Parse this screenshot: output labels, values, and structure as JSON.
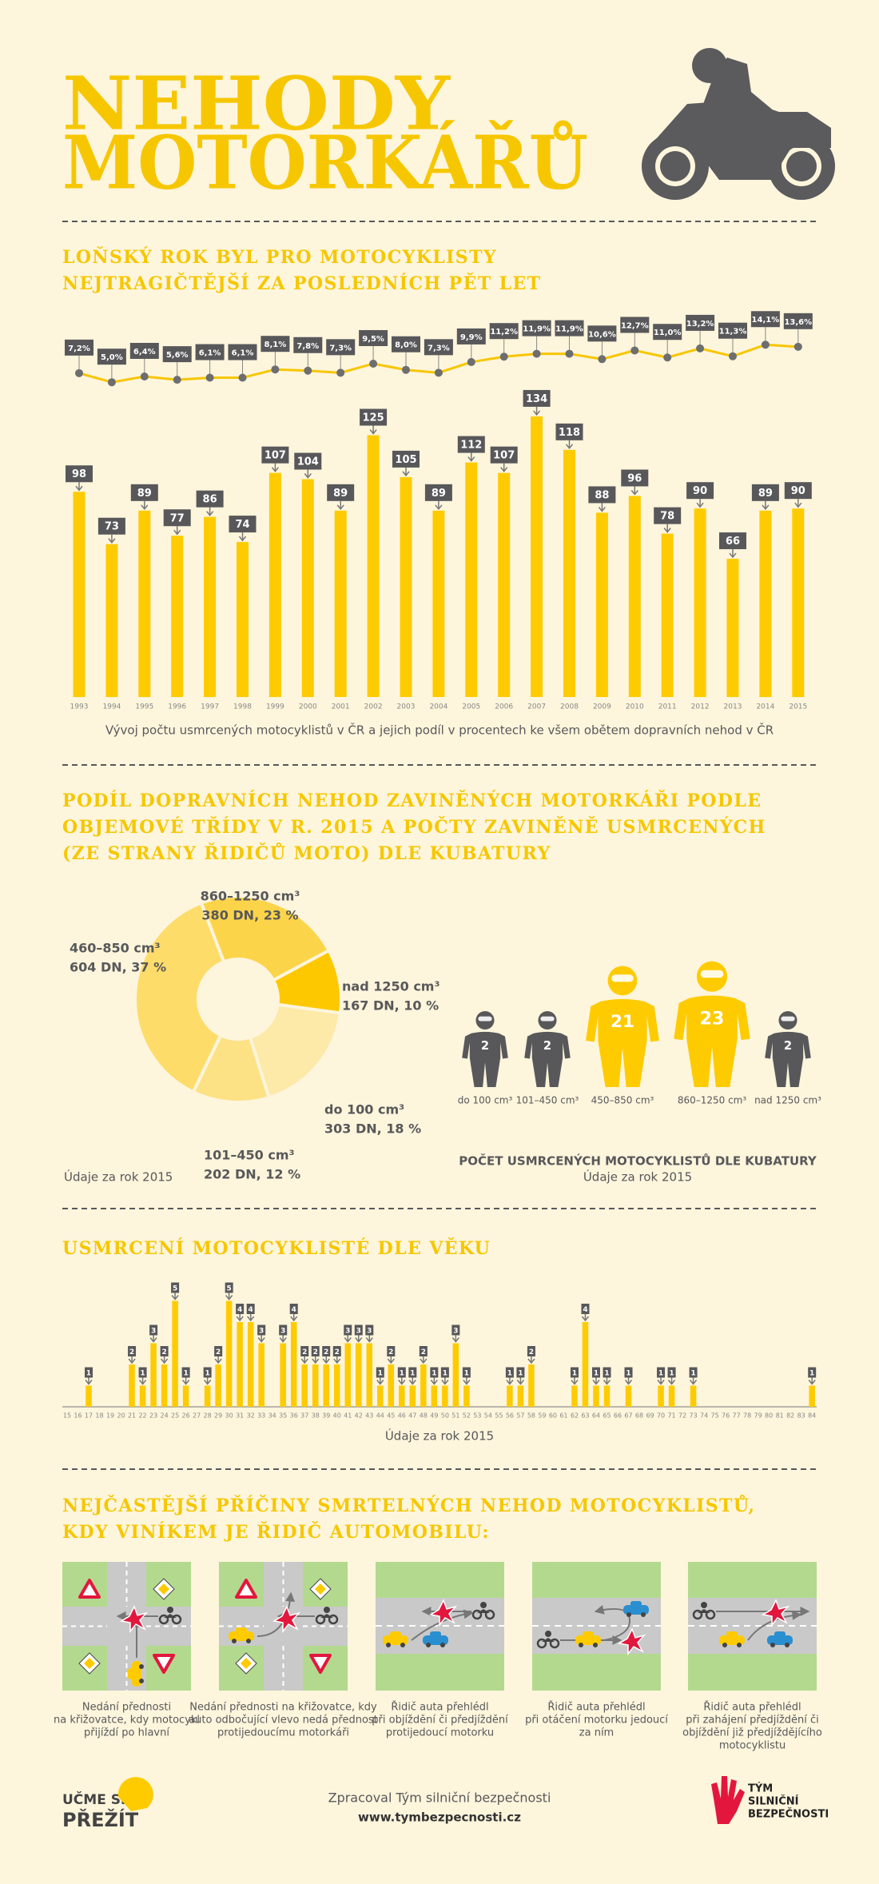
{
  "header": {
    "title": [
      "NEHODY",
      "MOTORKÁŘŮ"
    ]
  },
  "chart_data": [
    {
      "type": "bar",
      "title": [
        "LOŇSKÝ ROK BYL PRO MOTOCYKLISTY",
        "NEJTRAGIČTĚJŠÍ ZA POSLEDNÍCH PĚT LET"
      ],
      "categories": [
        "1993",
        "1994",
        "1995",
        "1996",
        "1997",
        "1998",
        "1999",
        "2000",
        "2001",
        "2002",
        "2003",
        "2004",
        "2005",
        "2006",
        "2007",
        "2008",
        "2009",
        "2010",
        "2011",
        "2012",
        "2013",
        "2014",
        "2015"
      ],
      "series": [
        {
          "values": [
            98,
            73,
            89,
            77,
            86,
            74,
            107,
            104,
            89,
            125,
            105,
            89,
            112,
            107,
            134,
            118,
            88,
            96,
            78,
            90,
            66,
            89,
            90
          ],
          "color": "#fecb00"
        },
        {
          "type": "line",
          "axis": "y2",
          "values": [
            7.2,
            5.0,
            6.4,
            5.6,
            6.1,
            6.1,
            8.1,
            7.8,
            7.3,
            9.5,
            8.0,
            7.3,
            9.9,
            11.2,
            11.9,
            11.9,
            10.6,
            12.7,
            11.0,
            13.2,
            11.3,
            14.1,
            13.6
          ],
          "value_labels": [
            "7,2%",
            "5,0%",
            "6,4%",
            "5,6%",
            "6,1%",
            "6,1%",
            "8,1%",
            "7,8%",
            "7,3%",
            "9,5%",
            "8,0%",
            "7,3%",
            "9,9%",
            "11,2%",
            "11,9%",
            "11,9%",
            "10,6%",
            "12,7%",
            "11,0%",
            "13,2%",
            "11,3%",
            "14,1%",
            "13,6%"
          ],
          "color": "#f7c600"
        }
      ],
      "caption": "Vývoj počtu usmrcených motocyklistů v ČR a jejich podíl v procentech ke všem obětem dopravních nehod v ČR"
    },
    {
      "type": "pie",
      "title": [
        "PODÍL DOPRAVNÍCH NEHOD ZAVINĚNÝCH MOTORKÁŘI PODLE",
        "OBJEMOVÉ TŘÍDY V R. 2015 A POČTY ZAVINĚNĚ USMRCENÝCH",
        "(ZE STRANY ŘIDIČŮ MOTO) DLE KUBATURY"
      ],
      "categories": [
        "860–1250 cm³",
        "nad 1250 cm³",
        "do 100 cm³",
        "101–450 cm³",
        "460–850 cm³"
      ],
      "values": [
        23,
        10,
        18,
        12,
        37
      ],
      "value_labels": [
        "380 DN, 23 %",
        "167 DN, 10 %",
        "303 DN, 18 %",
        "202 DN, 12 %",
        "604 DN, 37 %"
      ],
      "colors": [
        "#fcd44a",
        "#fec800",
        "#fde9a8",
        "#fde185",
        "#fddc6a"
      ],
      "note": "Údaje za rok 2015"
    },
    {
      "type": "pictogram",
      "title": "POČET USMRCENÝCH MOTOCYKLISTŮ DLE KUBATURY",
      "subtitle": "Údaje za rok 2015",
      "categories": [
        "do 100 cm³",
        "101–450 cm³",
        "450–850 cm³",
        "860–1250 cm³",
        "nad 1250 cm³"
      ],
      "values": [
        2,
        2,
        21,
        23,
        2
      ],
      "colors": [
        "#58585a",
        "#58585a",
        "#fecb00",
        "#fecb00",
        "#58585a"
      ]
    },
    {
      "type": "bar",
      "title": "USMRCENÍ MOTOCYKLISTÉ DLE VĚKU",
      "categories": [
        "15",
        "16",
        "17",
        "18",
        "19",
        "20",
        "21",
        "22",
        "23",
        "24",
        "25",
        "26",
        "27",
        "28",
        "29",
        "30",
        "31",
        "32",
        "33",
        "34",
        "35",
        "36",
        "37",
        "38",
        "39",
        "40",
        "41",
        "42",
        "43",
        "44",
        "45",
        "46",
        "47",
        "48",
        "49",
        "50",
        "51",
        "52",
        "53",
        "54",
        "55",
        "56",
        "57",
        "58",
        "59",
        "60",
        "61",
        "62",
        "63",
        "64",
        "65",
        "66",
        "67",
        "68",
        "69",
        "70",
        "71",
        "72",
        "73",
        "74",
        "75",
        "76",
        "77",
        "78",
        "79",
        "80",
        "81",
        "82",
        "83",
        "84"
      ],
      "values": [
        0,
        0,
        1,
        0,
        0,
        0,
        2,
        1,
        3,
        2,
        5,
        1,
        0,
        1,
        2,
        5,
        4,
        4,
        3,
        0,
        3,
        4,
        2,
        2,
        2,
        2,
        3,
        3,
        3,
        1,
        2,
        1,
        1,
        2,
        1,
        1,
        3,
        1,
        0,
        0,
        0,
        1,
        1,
        2,
        0,
        0,
        0,
        1,
        4,
        1,
        1,
        0,
        1,
        0,
        0,
        1,
        1,
        0,
        1,
        0,
        0,
        0,
        0,
        0,
        0,
        0,
        0,
        0,
        0,
        1
      ],
      "color": "#fecb00",
      "caption": "Údaje za rok 2015"
    }
  ],
  "causes": {
    "title": [
      "NEJČASTĚJŠÍ PŘÍČINY SMRTELNÝCH NEHOD MOTOCYKLISTŮ,",
      "KDY VINÍKEM JE ŘIDIČ AUTOMOBILU:"
    ],
    "items": [
      {
        "lines": [
          "Nedání přednosti",
          "na křižovatce, kdy motocykl",
          "přijíždí po hlavní"
        ]
      },
      {
        "lines": [
          "Nedání přednosti na křižovatce, kdy",
          "auto odbočující vlevo nedá přednost",
          "protijedoucímu motorkáři"
        ]
      },
      {
        "lines": [
          "Řidič auta přehlédl",
          "při objíždění či předjíždění",
          "protijedoucí motorku"
        ]
      },
      {
        "lines": [
          "Řidič auta přehlédl",
          "při otáčení motorku jedoucí",
          "za ním"
        ]
      },
      {
        "lines": [
          "Řidič auta přehlédl",
          "při zahájení předjíždění či",
          "objíždění již předjíždějícího",
          "motocyklistu"
        ]
      }
    ]
  },
  "footer": {
    "logo_left": [
      "UČME SE",
      "PŘEŽÍT"
    ],
    "credit": "Zpracoval Tým silniční bezpečnosti",
    "url": "www.tymbezpecnosti.cz",
    "logo_right": [
      "TÝM",
      "SILNIČNÍ",
      "BEZPEČNOSTI"
    ]
  }
}
